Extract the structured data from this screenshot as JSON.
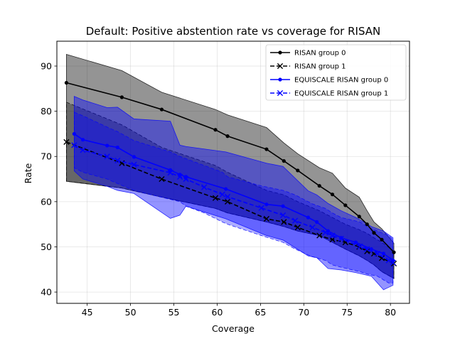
{
  "chart_data": {
    "type": "line",
    "title": "Default: Positive abstention rate vs coverage for RISAN",
    "xlabel": "Coverage",
    "ylabel": "Rate",
    "xlim": [
      41.5,
      82.2
    ],
    "ylim": [
      37.5,
      95.5
    ],
    "xticks": [
      45,
      50,
      55,
      60,
      65,
      70,
      75,
      80
    ],
    "yticks": [
      40,
      50,
      60,
      70,
      80,
      90
    ],
    "grid": true,
    "legend_position": "top-right",
    "series": [
      {
        "name": "RISAN group 0",
        "color": "#000000",
        "marker": "dot",
        "dashed": false,
        "x": [
          42.6,
          49.0,
          53.6,
          59.8,
          61.2,
          65.7,
          67.7,
          69.3,
          71.8,
          73.3,
          74.8,
          76.4,
          77.3,
          78.1,
          79.0,
          80.4
        ],
        "y": [
          86.3,
          83.1,
          80.4,
          75.9,
          74.5,
          71.6,
          69.0,
          66.9,
          63.5,
          61.6,
          59.2,
          56.7,
          55.0,
          53.1,
          51.6,
          48.8
        ],
        "band_upper": [
          92.6,
          89.0,
          84.2,
          80.4,
          79.2,
          76.4,
          73.0,
          70.6,
          67.5,
          66.3,
          63.0,
          61.0,
          58.0,
          55.5,
          54.0,
          50.8
        ],
        "band_lower": [
          64.5,
          63.0,
          61.0,
          58.5,
          57.5,
          55.5,
          54.5,
          53.5,
          52.5,
          51.0,
          49.5,
          48.0,
          47.0,
          46.0,
          44.5,
          43.0
        ]
      },
      {
        "name": "RISAN group 1",
        "color": "#000000",
        "marker": "x",
        "dashed": true,
        "x": [
          42.6,
          49.0,
          53.6,
          59.8,
          61.2,
          65.7,
          67.7,
          69.3,
          71.8,
          73.3,
          74.8,
          76.4,
          77.3,
          78.1,
          79.0,
          80.4
        ],
        "y": [
          73.2,
          68.5,
          65.0,
          60.8,
          60.0,
          56.2,
          55.5,
          54.3,
          52.5,
          51.6,
          51.0,
          50.0,
          49.0,
          48.5,
          47.5,
          46.3
        ],
        "band_upper": [
          82.0,
          77.0,
          72.0,
          68.0,
          66.5,
          62.5,
          61.5,
          60.0,
          58.0,
          56.5,
          55.0,
          53.8,
          53.0,
          52.0,
          51.0,
          49.0
        ],
        "band_lower": [
          64.5,
          63.0,
          61.0,
          58.5,
          57.5,
          55.5,
          54.5,
          53.5,
          52.5,
          51.0,
          49.5,
          48.0,
          47.0,
          46.0,
          44.5,
          43.0
        ]
      },
      {
        "name": "EQUISCALE RISAN group 0",
        "color": "#0000ff",
        "marker": "dot",
        "dashed": false,
        "x": [
          43.5,
          44.5,
          47.3,
          48.5,
          50.4,
          54.6,
          55.7,
          56.4,
          61.0,
          65.7,
          67.6,
          70.5,
          71.5,
          72.8,
          74.3,
          76.0,
          77.8,
          79.2,
          80.3
        ],
        "y": [
          75.0,
          73.7,
          72.4,
          72.0,
          69.9,
          67.0,
          66.0,
          65.5,
          62.8,
          59.4,
          59.0,
          56.5,
          55.5,
          53.5,
          52.0,
          51.0,
          49.5,
          48.5,
          47.0
        ],
        "band_upper": [
          83.3,
          82.5,
          80.8,
          80.9,
          78.3,
          77.8,
          72.5,
          72.2,
          71.0,
          68.5,
          67.8,
          62.4,
          61.5,
          59.6,
          58.0,
          56.5,
          54.5,
          53.5,
          52.0
        ],
        "band_lower": [
          66.8,
          65.0,
          63.4,
          62.5,
          61.8,
          56.3,
          57.0,
          59.0,
          56.2,
          52.5,
          51.5,
          48.0,
          47.6,
          45.2,
          44.9,
          44.3,
          43.5,
          40.5,
          41.5
        ]
      },
      {
        "name": "EQUISCALE RISAN group 1",
        "color": "#0000ff",
        "marker": "x",
        "dashed": true,
        "x": [
          43.5,
          44.5,
          47.3,
          48.5,
          50.4,
          54.6,
          55.7,
          56.4,
          58.5,
          60.6,
          61.2,
          65.1,
          67.6,
          69.0,
          71.0,
          72.5,
          73.3,
          74.3,
          76.5,
          77.3,
          78.5,
          79.8,
          80.3
        ],
        "y": [
          72.5,
          71.4,
          70.0,
          69.1,
          68.2,
          66.4,
          65.5,
          65.0,
          63.2,
          61.6,
          61.1,
          58.6,
          57.0,
          55.8,
          54.3,
          53.2,
          52.5,
          51.8,
          50.1,
          49.5,
          48.5,
          47.0,
          46.5
        ],
        "band_upper": [
          79.8,
          79.0,
          76.5,
          75.5,
          73.5,
          71.0,
          70.0,
          69.5,
          68.0,
          66.5,
          65.5,
          63.5,
          62.5,
          61.5,
          59.5,
          58.5,
          57.5,
          56.5,
          55.5,
          54.5,
          53.5,
          52.5,
          51.5
        ],
        "band_lower": [
          67.5,
          66.5,
          65.0,
          64.0,
          62.5,
          60.5,
          60.0,
          59.0,
          57.5,
          55.5,
          55.0,
          52.5,
          51.0,
          49.5,
          47.8,
          47.0,
          46.0,
          45.5,
          44.5,
          44.0,
          43.5,
          42.0,
          42.0
        ]
      }
    ]
  }
}
